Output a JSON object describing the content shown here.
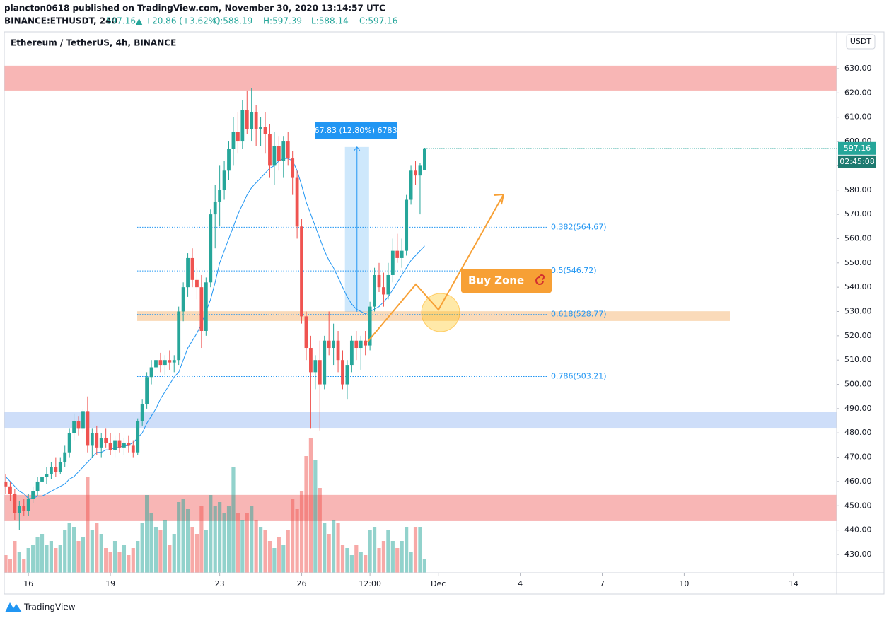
{
  "header": {
    "published": "plancton0618 published on TradingView.com, November 30, 2020 13:14:57 UTC",
    "symbol": "BINANCE:ETHUSDT, 240",
    "last": "597.16",
    "change": "▲ +20.86 (+3.62%)",
    "open": "O:588.19",
    "high": "H:597.39",
    "low": "L:588.14",
    "close": "C:597.16"
  },
  "footer": {
    "brand": "TradingView"
  },
  "chart_data": {
    "type": "candlestick",
    "legend": "Ethereum / TetherUS, 4h, BINANCE",
    "currency": "USDT",
    "countdown": "02:45:08",
    "last_price_label": "597.16",
    "up_color": "#26a69a",
    "down_color": "#ef5350",
    "ma_color": "#2196f3",
    "ylim": [
      422.43,
      645.14
    ],
    "yticks": [
      {
        "value": 430,
        "label": "430.00"
      },
      {
        "value": 440,
        "label": "440.00"
      },
      {
        "value": 450,
        "label": "450.00"
      },
      {
        "value": 460,
        "label": "460.00"
      },
      {
        "value": 470,
        "label": "470.00"
      },
      {
        "value": 480,
        "label": "480.00"
      },
      {
        "value": 490,
        "label": "490.00"
      },
      {
        "value": 500,
        "label": "500.00"
      },
      {
        "value": 510,
        "label": "510.00"
      },
      {
        "value": 520,
        "label": "520.00"
      },
      {
        "value": 530,
        "label": "530.00"
      },
      {
        "value": 540,
        "label": "540.00"
      },
      {
        "value": 550,
        "label": "550.00"
      },
      {
        "value": 560,
        "label": "560.00"
      },
      {
        "value": 570,
        "label": "570.00"
      },
      {
        "value": 580,
        "label": "580.00"
      },
      {
        "value": 590,
        "label": "590.00"
      },
      {
        "value": 600,
        "label": "600.00"
      },
      {
        "value": 610,
        "label": "610.00"
      },
      {
        "value": 620,
        "label": "620.00"
      },
      {
        "value": 630,
        "label": "630.00"
      }
    ],
    "xlim": [
      15.1667,
      45.58
    ],
    "xticks": [
      16,
      19,
      23,
      26,
      {
        "value": 28.5,
        "label": "12:00"
      },
      {
        "value": 31,
        "label": "Dec"
      },
      {
        "value": 34,
        "label": "4"
      },
      {
        "value": 37,
        "label": "7"
      },
      {
        "value": 40,
        "label": "10"
      },
      {
        "value": 44,
        "label": "14"
      }
    ],
    "ohlc": [
      [
        460,
        463,
        455,
        458
      ],
      [
        458,
        460,
        452,
        455
      ],
      [
        455,
        457,
        444,
        447
      ],
      [
        447,
        452,
        440,
        450
      ],
      [
        450,
        453,
        446,
        448
      ],
      [
        448,
        455,
        446,
        453
      ],
      [
        453,
        458,
        451,
        456
      ],
      [
        456,
        462,
        454,
        460
      ],
      [
        460,
        464,
        457,
        462
      ],
      [
        462,
        466,
        459,
        463
      ],
      [
        463,
        468,
        461,
        466
      ],
      [
        466,
        470,
        462,
        464
      ],
      [
        464,
        470,
        463,
        468
      ],
      [
        468,
        475,
        466,
        472
      ],
      [
        472,
        482,
        470,
        480
      ],
      [
        480,
        488,
        477,
        485
      ],
      [
        485,
        487,
        479,
        482
      ],
      [
        482,
        490,
        480,
        489
      ],
      [
        489,
        495,
        472,
        475
      ],
      [
        475,
        482,
        470,
        480
      ],
      [
        480,
        483,
        471,
        474
      ],
      [
        474,
        480,
        470,
        478
      ],
      [
        478,
        482,
        474,
        476
      ],
      [
        476,
        480,
        471,
        473
      ],
      [
        473,
        479,
        470,
        477
      ],
      [
        477,
        480,
        472,
        474
      ],
      [
        474,
        478,
        471,
        476
      ],
      [
        476,
        479,
        472,
        475
      ],
      [
        475,
        477,
        470,
        472
      ],
      [
        472,
        486,
        471,
        485
      ],
      [
        485,
        494,
        483,
        492
      ],
      [
        492,
        505,
        490,
        503
      ],
      [
        503,
        510,
        500,
        507
      ],
      [
        507,
        512,
        503,
        510
      ],
      [
        510,
        513,
        505,
        508
      ],
      [
        508,
        512,
        504,
        510
      ],
      [
        510,
        514,
        506,
        509
      ],
      [
        509,
        512,
        505,
        510
      ],
      [
        510,
        532,
        508,
        530
      ],
      [
        530,
        542,
        526,
        540
      ],
      [
        540,
        554,
        536,
        552
      ],
      [
        552,
        556,
        540,
        543
      ],
      [
        543,
        548,
        535,
        540
      ],
      [
        540,
        545,
        515,
        522
      ],
      [
        522,
        544,
        520,
        542
      ],
      [
        542,
        572,
        540,
        570
      ],
      [
        570,
        582,
        556,
        575
      ],
      [
        575,
        590,
        565,
        580
      ],
      [
        580,
        592,
        576,
        588
      ],
      [
        588,
        600,
        584,
        597
      ],
      [
        597,
        610,
        590,
        604
      ],
      [
        604,
        612,
        595,
        600
      ],
      [
        600,
        617,
        597,
        613
      ],
      [
        613,
        621,
        603,
        605
      ],
      [
        605,
        622,
        600,
        612
      ],
      [
        612,
        615,
        598,
        605
      ],
      [
        605,
        610,
        598,
        606
      ],
      [
        606,
        612,
        595,
        603
      ],
      [
        603,
        607,
        585,
        590
      ],
      [
        590,
        604,
        582,
        598
      ],
      [
        598,
        602,
        588,
        592
      ],
      [
        592,
        602,
        585,
        600
      ],
      [
        600,
        604,
        590,
        593
      ],
      [
        593,
        596,
        578,
        585
      ],
      [
        585,
        588,
        560,
        565
      ],
      [
        565,
        568,
        525,
        528
      ],
      [
        528,
        530,
        510,
        515
      ],
      [
        515,
        520,
        482,
        505
      ],
      [
        505,
        512,
        498,
        510
      ],
      [
        510,
        518,
        481,
        500
      ],
      [
        500,
        520,
        498,
        518
      ],
      [
        518,
        530,
        512,
        515
      ],
      [
        515,
        525,
        508,
        518
      ],
      [
        518,
        522,
        505,
        510
      ],
      [
        510,
        514,
        498,
        500
      ],
      [
        500,
        510,
        494,
        508
      ],
      [
        508,
        520,
        505,
        518
      ],
      [
        518,
        522,
        510,
        515
      ],
      [
        515,
        520,
        506,
        518
      ],
      [
        518,
        522,
        512,
        516
      ],
      [
        516,
        534,
        514,
        532
      ],
      [
        532,
        548,
        530,
        545
      ],
      [
        545,
        550,
        538,
        540
      ],
      [
        540,
        546,
        532,
        537
      ],
      [
        537,
        550,
        535,
        545
      ],
      [
        545,
        560,
        542,
        555
      ],
      [
        555,
        562,
        550,
        552
      ],
      [
        552,
        560,
        548,
        555
      ],
      [
        555,
        578,
        553,
        576
      ],
      [
        576,
        590,
        574,
        588
      ],
      [
        588,
        592,
        582,
        586
      ],
      [
        586,
        591,
        570,
        590
      ],
      [
        588.19,
        597.39,
        588.14,
        597.16
      ]
    ],
    "volume": [
      25,
      20,
      45,
      30,
      20,
      35,
      40,
      50,
      55,
      40,
      45,
      35,
      40,
      60,
      70,
      65,
      45,
      50,
      135,
      60,
      70,
      55,
      35,
      30,
      45,
      30,
      40,
      25,
      35,
      45,
      70,
      110,
      85,
      65,
      60,
      75,
      40,
      55,
      100,
      105,
      90,
      65,
      55,
      95,
      60,
      110,
      95,
      100,
      85,
      95,
      150,
      85,
      75,
      85,
      95,
      75,
      65,
      60,
      45,
      35,
      50,
      40,
      60,
      105,
      90,
      115,
      165,
      190,
      160,
      120,
      70,
      55,
      75,
      70,
      40,
      35,
      25,
      40,
      30,
      25,
      60,
      65,
      35,
      45,
      60,
      45,
      35,
      45,
      65,
      30,
      65,
      65,
      20
    ],
    "ma": [
      462,
      460,
      458,
      456,
      455,
      453,
      453,
      454,
      454,
      455,
      456,
      457,
      458,
      459,
      461,
      462,
      464,
      466,
      468,
      470,
      472,
      472,
      473,
      473,
      474,
      474,
      475,
      475,
      476,
      478,
      480,
      484,
      487,
      490,
      494,
      497,
      500,
      503,
      505,
      510,
      515,
      518,
      521,
      525,
      530,
      535,
      542,
      550,
      555,
      560,
      565,
      570,
      574,
      578,
      581,
      583,
      585,
      587,
      589,
      590,
      592,
      593,
      593,
      592,
      588,
      582,
      575,
      570,
      565,
      560,
      555,
      551,
      548,
      544,
      540,
      536,
      533,
      531,
      530,
      529,
      530,
      531,
      532,
      534,
      536,
      539,
      542,
      545,
      548,
      551,
      553,
      555,
      557
    ],
    "zones": [
      {
        "from": 621,
        "to": 631.2,
        "color": "#f7a9a8"
      },
      {
        "from": 482.1,
        "to": 488.7,
        "color": "#c5d8f8"
      },
      {
        "from": 443.7,
        "to": 454.5,
        "color": "#f7a9a8"
      },
      {
        "from": 526.1,
        "to": 530.1,
        "color": "#f9d3ad"
      }
    ],
    "fib_levels": [
      {
        "value": 564.67,
        "label": "0.382(564.67)"
      },
      {
        "value": 546.72,
        "label": "0.5(546.72)"
      },
      {
        "value": 528.77,
        "label": "0.618(528.77)"
      },
      {
        "value": 503.21,
        "label": "0.786(503.21)"
      }
    ],
    "measure": {
      "from": 529.9,
      "to": 597.73,
      "label": "67.83 (12.80%) 6783"
    },
    "annotation": "Buy Zone"
  }
}
